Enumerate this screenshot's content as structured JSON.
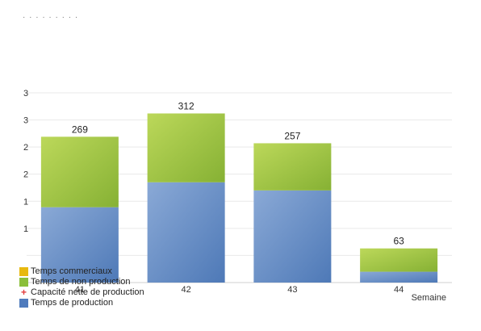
{
  "chart_data": {
    "type": "bar",
    "stacked": true,
    "categories": [
      "41",
      "42",
      "43",
      "44"
    ],
    "xlabel": "Semaine",
    "ylabel": "",
    "ylim": [
      0,
      350
    ],
    "grid": true,
    "totals": [
      269,
      312,
      257,
      63
    ],
    "series": [
      {
        "name": "Temps de production",
        "color": "#6a8fc4",
        "values": [
          139,
          185,
          170,
          20
        ]
      },
      {
        "name": "Temps de non production",
        "color": "#9cc23c",
        "values": [
          130,
          127,
          87,
          43
        ]
      },
      {
        "name": "Temps commerciaux",
        "color": "#f2b705",
        "values": [
          0,
          0,
          0,
          0
        ]
      }
    ],
    "y_tick_labels": [
      "1",
      "1",
      "2",
      "2",
      "3",
      "3"
    ],
    "legend": [
      {
        "label": "Temps commerciaux",
        "color": "#e8b90f",
        "marker": "square"
      },
      {
        "label": "Temps de non production",
        "color": "#8bbf3a",
        "marker": "square"
      },
      {
        "label": "Capacité nette de production",
        "color": "#e23b3b",
        "marker": "plus"
      },
      {
        "label": "Temps de production",
        "color": "#4f7bbd",
        "marker": "square"
      }
    ]
  }
}
